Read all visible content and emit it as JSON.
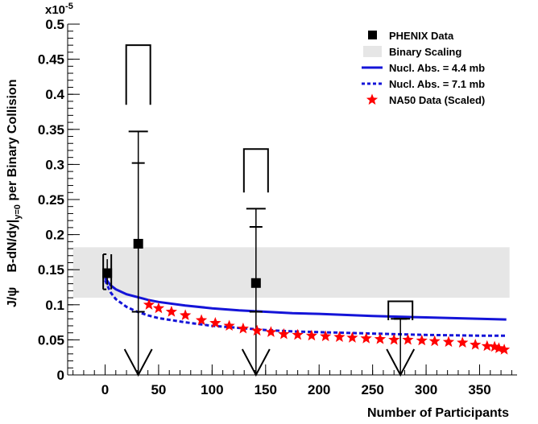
{
  "chart_data": {
    "type": "scatter",
    "xlabel": "Number of Participants",
    "ylabel_main": "B-dN/dy|",
    "ylabel_sub": "y=0",
    "ylabel_tail": " per Binary Collision",
    "ylabel_prefix": "J/ψ",
    "exponent_label": "x10",
    "exponent_power": "-5",
    "xlim": [
      -35,
      385
    ],
    "ylim": [
      0,
      0.5
    ],
    "xticks": [
      0,
      50,
      100,
      150,
      200,
      250,
      300,
      350
    ],
    "yticks": [
      0,
      0.05,
      0.1,
      0.15,
      0.2,
      0.25,
      0.3,
      0.35,
      0.4,
      0.45,
      0.5
    ],
    "yticklabels": [
      "0",
      "0.05",
      "0.1",
      "0.15",
      "0.2",
      "0.25",
      "0.3",
      "0.35",
      "0.4",
      "0.45",
      "0.5"
    ],
    "legend_position": "top-right",
    "legend": [
      {
        "label": "PHENIX Data",
        "kind": "square",
        "color": "#000000"
      },
      {
        "label": "Binary Scaling",
        "kind": "band",
        "color": "#e6e6e6"
      },
      {
        "label": "Nucl. Abs. = 4.4 mb",
        "kind": "solid",
        "color": "#1414d8"
      },
      {
        "label": "Nucl. Abs. = 7.1 mb",
        "kind": "dotted",
        "color": "#1414d8"
      },
      {
        "label": "NA50 Data (Scaled)",
        "kind": "star",
        "color": "#ff0000"
      }
    ],
    "binary_scaling_band": {
      "x": [
        -30,
        378
      ],
      "y": [
        0.11,
        0.182
      ]
    },
    "phenix_points": [
      {
        "x": 2,
        "y": 0.145,
        "stat_err": [
          0.128,
          0.165
        ],
        "sys_err": [
          0.122,
          0.172
        ],
        "sys_half_width": 5
      },
      {
        "x": 31,
        "y": 0.187,
        "stat_err": [
          0.09,
          0.302
        ],
        "sys_err": [
          0.09,
          0.347
        ],
        "upper_limit_box": [
          0.385,
          0.47
        ],
        "arrow_to": 0,
        "box_half_width": 15
      },
      {
        "x": 141,
        "y": 0.131,
        "stat_err": [
          0.09,
          0.211
        ],
        "sys_err": [
          0.09,
          0.237
        ],
        "upper_limit_box": [
          0.26,
          0.322
        ],
        "arrow_to": 0,
        "box_half_width": 15
      },
      {
        "x": 276,
        "y": null,
        "stat_err": [
          0.08,
          0.08
        ],
        "sys_err": [
          0.08,
          0.08
        ],
        "upper_limit_box": [
          0.078,
          0.105
        ],
        "arrow_to": 0,
        "box_half_width": 15
      }
    ],
    "nucl_abs_44": {
      "x": [
        0,
        5,
        10,
        20,
        30,
        40,
        50,
        75,
        100,
        125,
        150,
        175,
        200,
        250,
        300,
        350,
        375
      ],
      "y": [
        0.138,
        0.128,
        0.122,
        0.115,
        0.111,
        0.107,
        0.104,
        0.099,
        0.095,
        0.092,
        0.09,
        0.088,
        0.087,
        0.084,
        0.082,
        0.08,
        0.079
      ]
    },
    "nucl_abs_71": {
      "x": [
        0,
        5,
        10,
        20,
        30,
        40,
        50,
        75,
        100,
        125,
        150,
        175,
        200,
        250,
        300,
        350,
        375
      ],
      "y": [
        0.135,
        0.118,
        0.108,
        0.097,
        0.09,
        0.085,
        0.081,
        0.075,
        0.07,
        0.067,
        0.064,
        0.062,
        0.061,
        0.059,
        0.057,
        0.056,
        0.056
      ]
    },
    "na50_points": {
      "x": [
        41,
        50,
        62,
        75,
        90,
        103,
        116,
        129,
        142,
        155,
        167,
        180,
        193,
        206,
        219,
        231,
        244,
        257,
        270,
        283,
        296,
        308,
        321,
        334,
        346,
        357,
        364,
        368,
        373
      ],
      "y": [
        0.1,
        0.095,
        0.09,
        0.085,
        0.078,
        0.074,
        0.07,
        0.066,
        0.063,
        0.061,
        0.058,
        0.057,
        0.056,
        0.055,
        0.054,
        0.053,
        0.052,
        0.051,
        0.05,
        0.05,
        0.049,
        0.048,
        0.047,
        0.046,
        0.043,
        0.041,
        0.04,
        0.038,
        0.036
      ]
    }
  }
}
